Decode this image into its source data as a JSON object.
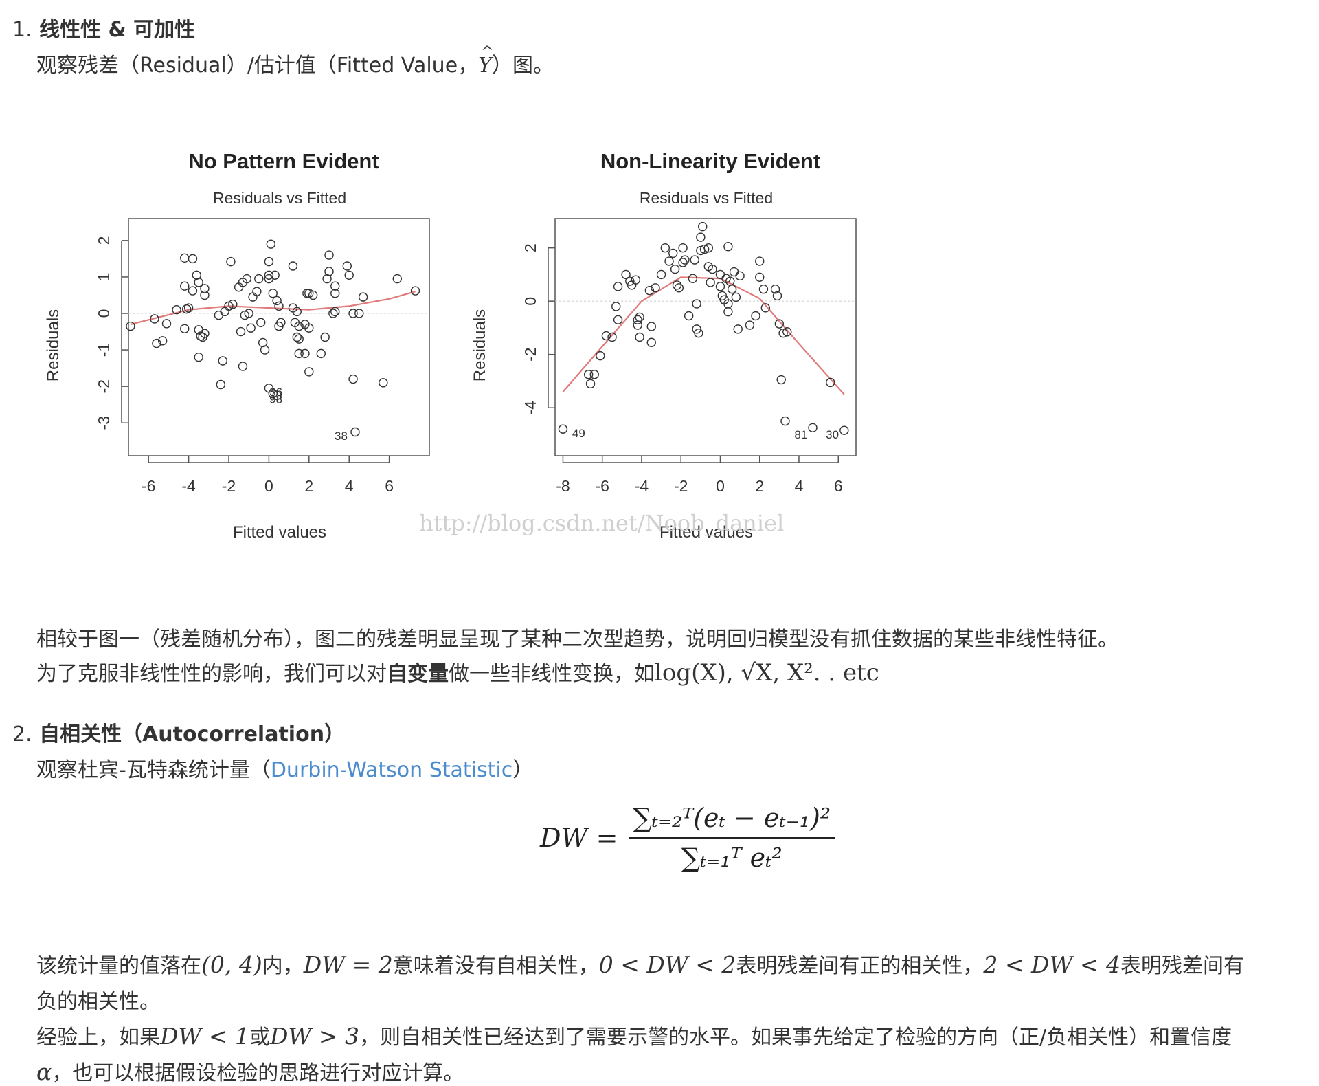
{
  "section1": {
    "number": "1.",
    "heading": "线性性 & 可加性",
    "intro_prefix": "观察残差（Residual）/估计值（Fitted Value，",
    "intro_symbol": "Y",
    "intro_suffix": "）图。",
    "para1": "相较于图一（残差随机分布），图二的残差明显呈现了某种二次型趋势，说明回归模型没有抓住数据的某些非线性特征。",
    "para2_prefix": "为了克服非线性性的影响，我们可以对",
    "para2_bold": "自变量",
    "para2_mid": "做一些非线性变换，如",
    "para2_math": "log(X), √X, X². . etc"
  },
  "watermark": "http://blog.csdn.net/Noob_daniel",
  "section2": {
    "number": "2.",
    "heading": "自相关性（Autocorrelation）",
    "intro_prefix": "观察杜宾-瓦特森统计量（",
    "intro_link": "Durbin-Watson Statistic",
    "intro_suffix": "）",
    "formula_lhs": "DW =",
    "formula_num": "∑ₜ₌₂ᵀ(eₜ − eₜ₋₁)²",
    "formula_den": "∑ₜ₌₁ᵀ eₜ²",
    "p1_line1_a": "该统计量的值落在",
    "p1_line1_m1": "(0, 4)",
    "p1_line1_b": "内，",
    "p1_line1_m2": "DW = 2",
    "p1_line1_c": "意味着没有自相关性，",
    "p1_line1_m3": "0 < DW < 2",
    "p1_line1_d": "表明残差间有正的相关性，",
    "p1_line1_m4": "2 < DW < 4",
    "p1_line1_e": "表明残差间有",
    "p1_line2": "负的相关性。",
    "p2_line1_a": "经验上，如果",
    "p2_line1_m1": "DW < 1",
    "p2_line1_b": "或",
    "p2_line1_m2": "DW > 3",
    "p2_line1_c": "，则自相关性已经达到了需要示警的水平。如果事先给定了检验的方向（正/负相关性）和置信度",
    "p2_line2_m": "α",
    "p2_line2": "，也可以根据假设检验的思路进行对应计算。"
  },
  "chart_data": [
    {
      "type": "scatter",
      "title": "No Pattern Evident",
      "subtitle": "Residuals vs Fitted",
      "xlabel": "Fitted values",
      "ylabel": "Residuals",
      "xlim": [
        -7,
        8
      ],
      "ylim": [
        -3.9,
        2.6
      ],
      "xticks": [
        -6,
        -4,
        -2,
        0,
        2,
        4,
        6
      ],
      "yticks": [
        -3,
        -2,
        -1,
        0,
        1,
        2
      ],
      "points": [
        [
          -6.9,
          -0.35
        ],
        [
          -5.7,
          -0.15
        ],
        [
          -5.6,
          -0.82
        ],
        [
          -5.3,
          -0.75
        ],
        [
          -5.1,
          -0.28
        ],
        [
          -4.6,
          0.1
        ],
        [
          -4.2,
          -0.42
        ],
        [
          -4.1,
          0.12
        ],
        [
          -4.0,
          0.15
        ],
        [
          -4.2,
          1.52
        ],
        [
          -3.8,
          1.5
        ],
        [
          -4.2,
          0.75
        ],
        [
          -3.8,
          0.62
        ],
        [
          -3.6,
          1.05
        ],
        [
          -3.5,
          0.85
        ],
        [
          -3.2,
          0.68
        ],
        [
          -3.2,
          0.5
        ],
        [
          -3.5,
          -0.45
        ],
        [
          -3.4,
          -0.62
        ],
        [
          -3.3,
          -0.65
        ],
        [
          -3.2,
          -0.55
        ],
        [
          -3.5,
          -1.2
        ],
        [
          -2.4,
          -1.95
        ],
        [
          -2.3,
          -1.3
        ],
        [
          -2.5,
          -0.05
        ],
        [
          -2.2,
          0.05
        ],
        [
          -2.0,
          0.2
        ],
        [
          -1.8,
          0.25
        ],
        [
          -1.9,
          1.42
        ],
        [
          -1.5,
          0.72
        ],
        [
          -1.3,
          0.85
        ],
        [
          -1.1,
          0.95
        ],
        [
          -1.2,
          -0.05
        ],
        [
          -1.4,
          -0.5
        ],
        [
          -1.3,
          -1.45
        ],
        [
          -1.0,
          0.0
        ],
        [
          -0.9,
          -0.4
        ],
        [
          -0.8,
          0.45
        ],
        [
          -0.6,
          0.6
        ],
        [
          -0.5,
          0.95
        ],
        [
          -0.4,
          -0.25
        ],
        [
          -0.3,
          -0.8
        ],
        [
          -0.2,
          -1.0
        ],
        [
          0.0,
          1.42
        ],
        [
          0.0,
          1.05
        ],
        [
          0.0,
          0.95
        ],
        [
          0.1,
          1.9
        ],
        [
          0.3,
          1.05
        ],
        [
          0.2,
          0.55
        ],
        [
          0.4,
          0.35
        ],
        [
          0.5,
          0.2
        ],
        [
          0.6,
          -0.25
        ],
        [
          0.5,
          -0.35
        ],
        [
          0.0,
          -2.05
        ],
        [
          0.2,
          -2.2
        ],
        [
          0.4,
          -2.25
        ],
        [
          1.2,
          1.3
        ],
        [
          1.2,
          0.15
        ],
        [
          1.4,
          0.05
        ],
        [
          1.3,
          -0.25
        ],
        [
          1.5,
          -0.35
        ],
        [
          1.4,
          -0.65
        ],
        [
          1.5,
          -0.7
        ],
        [
          1.5,
          -1.1
        ],
        [
          1.8,
          -1.1
        ],
        [
          1.9,
          0.55
        ],
        [
          2.0,
          0.55
        ],
        [
          2.2,
          0.5
        ],
        [
          1.8,
          -0.3
        ],
        [
          2.0,
          -0.4
        ],
        [
          2.0,
          -1.6
        ],
        [
          2.6,
          -1.1
        ],
        [
          2.8,
          -0.65
        ],
        [
          3.0,
          1.6
        ],
        [
          3.0,
          1.15
        ],
        [
          2.9,
          0.95
        ],
        [
          3.3,
          0.75
        ],
        [
          3.3,
          0.55
        ],
        [
          3.3,
          0.05
        ],
        [
          3.2,
          0.0
        ],
        [
          3.9,
          1.3
        ],
        [
          4.0,
          1.05
        ],
        [
          4.2,
          -1.8
        ],
        [
          4.2,
          0.0
        ],
        [
          4.5,
          0.0
        ],
        [
          4.7,
          0.45
        ],
        [
          5.7,
          -1.9
        ],
        [
          6.4,
          0.95
        ],
        [
          7.3,
          0.62
        ],
        [
          4.3,
          -3.25
        ]
      ],
      "smoother": [
        [
          -6.9,
          -0.3
        ],
        [
          -4,
          0.1
        ],
        [
          -2,
          0.2
        ],
        [
          0,
          0.15
        ],
        [
          2,
          0.1
        ],
        [
          4,
          0.2
        ],
        [
          6,
          0.4
        ],
        [
          7.3,
          0.6
        ]
      ],
      "labels": [
        {
          "text": "36",
          "x": 0.35,
          "y": -2.15
        },
        {
          "text": "98",
          "x": 0.35,
          "y": -2.35
        },
        {
          "text": "38",
          "x": 3.6,
          "y": -3.35
        }
      ],
      "colors": {
        "points": "#333333",
        "smoother": "#e07a7a",
        "zero_line": "#cccccc"
      }
    },
    {
      "type": "scatter",
      "title": "Non-Linearity Evident",
      "subtitle": "Residuals vs Fitted",
      "xlabel": "Fitted values",
      "ylabel": "Residuals",
      "xlim": [
        -8.4,
        6.9
      ],
      "ylim": [
        -5.8,
        3.1
      ],
      "xticks": [
        -8,
        -6,
        -4,
        -2,
        0,
        2,
        4,
        6
      ],
      "yticks": [
        -4,
        -2,
        0,
        2
      ],
      "points": [
        [
          -8,
          -4.8
        ],
        [
          -6.7,
          -2.75
        ],
        [
          -6.6,
          -3.1
        ],
        [
          -6.4,
          -2.75
        ],
        [
          -6.1,
          -2.05
        ],
        [
          -5.8,
          -1.3
        ],
        [
          -5.5,
          -1.35
        ],
        [
          -5.3,
          -0.2
        ],
        [
          -5.2,
          -0.7
        ],
        [
          -5.2,
          0.55
        ],
        [
          -4.8,
          1.0
        ],
        [
          -4.6,
          0.75
        ],
        [
          -4.5,
          0.6
        ],
        [
          -4.3,
          0.8
        ],
        [
          -4.2,
          -0.7
        ],
        [
          -4.1,
          -0.6
        ],
        [
          -4.2,
          -0.9
        ],
        [
          -4.1,
          -1.35
        ],
        [
          -3.6,
          0.4
        ],
        [
          -3.5,
          -0.95
        ],
        [
          -3.5,
          -1.55
        ],
        [
          -3.3,
          0.5
        ],
        [
          -3.0,
          1.0
        ],
        [
          -2.8,
          2.0
        ],
        [
          -2.6,
          1.5
        ],
        [
          -2.4,
          1.8
        ],
        [
          -2.3,
          1.2
        ],
        [
          -2.2,
          0.6
        ],
        [
          -2.1,
          0.5
        ],
        [
          -1.9,
          2.0
        ],
        [
          -1.9,
          1.45
        ],
        [
          -1.8,
          1.55
        ],
        [
          -1.6,
          -0.55
        ],
        [
          -1.4,
          0.85
        ],
        [
          -1.3,
          1.55
        ],
        [
          -1.2,
          -0.1
        ],
        [
          -1.2,
          -1.05
        ],
        [
          -1.1,
          -1.2
        ],
        [
          -1.0,
          1.9
        ],
        [
          -1.0,
          2.4
        ],
        [
          -0.9,
          2.8
        ],
        [
          -0.8,
          1.95
        ],
        [
          -0.6,
          2.0
        ],
        [
          -0.6,
          1.3
        ],
        [
          -0.5,
          0.7
        ],
        [
          -0.4,
          1.2
        ],
        [
          0.0,
          1.0
        ],
        [
          0.0,
          0.55
        ],
        [
          0.1,
          0.2
        ],
        [
          0.2,
          0.05
        ],
        [
          0.3,
          0.85
        ],
        [
          0.4,
          -0.1
        ],
        [
          0.4,
          -0.4
        ],
        [
          0.5,
          0.75
        ],
        [
          0.6,
          0.45
        ],
        [
          0.7,
          1.1
        ],
        [
          0.8,
          0.15
        ],
        [
          0.9,
          -1.05
        ],
        [
          1.0,
          0.95
        ],
        [
          0.4,
          2.05
        ],
        [
          1.5,
          -0.9
        ],
        [
          1.8,
          -0.55
        ],
        [
          2.0,
          1.5
        ],
        [
          2.0,
          0.9
        ],
        [
          2.2,
          0.45
        ],
        [
          2.3,
          -0.25
        ],
        [
          2.8,
          0.45
        ],
        [
          2.9,
          0.2
        ],
        [
          3.0,
          -0.85
        ],
        [
          3.2,
          -1.2
        ],
        [
          3.4,
          -1.15
        ],
        [
          3.1,
          -2.95
        ],
        [
          3.3,
          -4.5
        ],
        [
          4.7,
          -4.75
        ],
        [
          5.6,
          -3.05
        ],
        [
          6.3,
          -4.85
        ]
      ],
      "smoother": [
        [
          -8,
          -3.4
        ],
        [
          -6,
          -1.7
        ],
        [
          -4,
          0.0
        ],
        [
          -2,
          0.9
        ],
        [
          0,
          0.85
        ],
        [
          2,
          0.1
        ],
        [
          4,
          -1.6
        ],
        [
          6.3,
          -3.5
        ]
      ],
      "labels": [
        {
          "text": "49",
          "x": -7.2,
          "y": -4.95
        },
        {
          "text": "81",
          "x": 4.1,
          "y": -5.0
        },
        {
          "text": "30",
          "x": 5.7,
          "y": -5.0
        }
      ],
      "colors": {
        "points": "#333333",
        "smoother": "#e07a7a",
        "zero_line": "#cccccc"
      }
    }
  ]
}
